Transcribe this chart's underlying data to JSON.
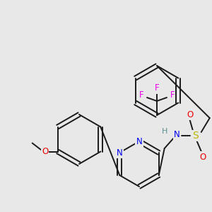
{
  "bg_color": "#e8e8e8",
  "bond_color": "#1a1a1a",
  "nitrogen_color": "#0000ee",
  "oxygen_color": "#ee0000",
  "sulfur_color": "#b8b800",
  "fluorine_color": "#ee00ee",
  "hydrogen_color": "#5a9090",
  "figsize": [
    3.0,
    3.0
  ],
  "dpi": 100,
  "xlim": [
    0,
    300
  ],
  "ylim": [
    0,
    300
  ]
}
